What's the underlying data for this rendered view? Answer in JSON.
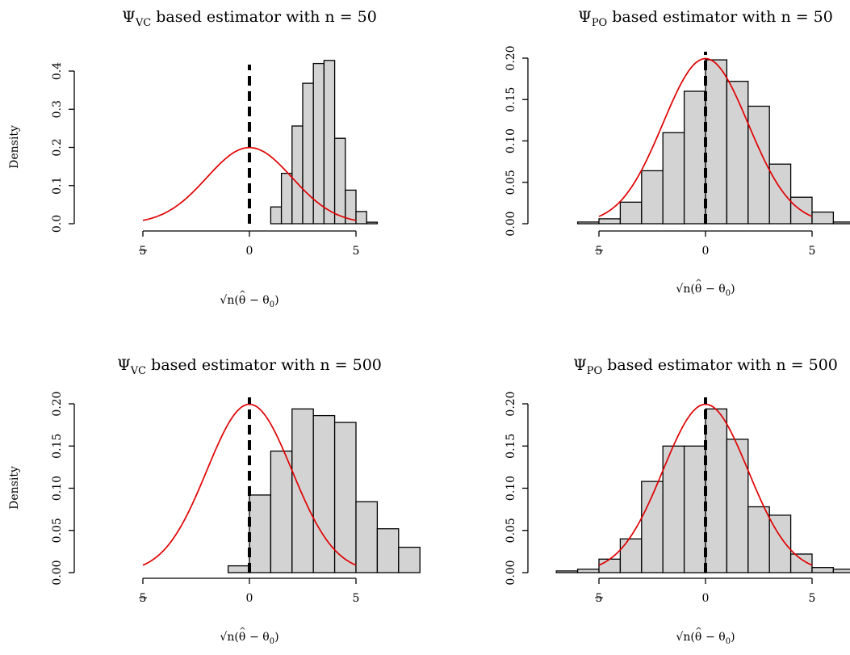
{
  "chart_data": [
    {
      "type": "bar",
      "panel": "top-left",
      "title": {
        "psi": "Ψ",
        "sub": "VC",
        "text": " based estimator with n = 50"
      },
      "ylabel": "Density",
      "xlabel": {
        "sqrt": "√",
        "n": "n",
        "open": "(",
        "theta": "θ",
        "hat": "^",
        "minus": " − θ",
        "sub": "0",
        "close": ")"
      },
      "xlim": [
        -5,
        5
      ],
      "ylim": [
        0,
        0.4
      ],
      "xticks": [
        -5,
        0,
        5
      ],
      "xtick_labels": [
        "5",
        "0",
        "5"
      ],
      "yticks": [
        0.0,
        0.1,
        0.2,
        0.3,
        0.4
      ],
      "ytick_labels": [
        "0.0",
        "0.1",
        "0.2",
        "0.3",
        "0.4"
      ],
      "bins": [
        {
          "x0": 0.5,
          "x1": 1.0,
          "density": 0.0
        },
        {
          "x0": 1.0,
          "x1": 1.5,
          "density": 0.044
        },
        {
          "x0": 1.5,
          "x1": 2.0,
          "density": 0.132
        },
        {
          "x0": 2.0,
          "x1": 2.5,
          "density": 0.256
        },
        {
          "x0": 2.5,
          "x1": 3.0,
          "density": 0.368
        },
        {
          "x0": 3.0,
          "x1": 3.5,
          "density": 0.42
        },
        {
          "x0": 3.5,
          "x1": 4.0,
          "density": 0.428
        },
        {
          "x0": 4.0,
          "x1": 4.5,
          "density": 0.224
        },
        {
          "x0": 4.5,
          "x1": 5.0,
          "density": 0.088
        },
        {
          "x0": 5.0,
          "x1": 5.5,
          "density": 0.032
        },
        {
          "x0": 5.5,
          "x1": 6.0,
          "density": 0.004
        }
      ],
      "curve": {
        "mean": 0,
        "sd": 2,
        "from": -5,
        "to": 5
      },
      "vline_x": 0,
      "colors": {
        "bar": "#d3d3d3",
        "curve": "#e00000",
        "vline": "#000000"
      }
    },
    {
      "type": "bar",
      "panel": "top-right",
      "title": {
        "psi": "Ψ",
        "sub": "PO",
        "text": " based estimator with n = 50"
      },
      "ylabel": "",
      "xlabel": {
        "sqrt": "√",
        "n": "n",
        "open": "(",
        "theta": "θ",
        "hat": "^",
        "minus": " − θ",
        "sub": "0",
        "close": ")"
      },
      "xlim": [
        -5,
        5
      ],
      "ylim": [
        0,
        0.2
      ],
      "xticks": [
        -5,
        0,
        5
      ],
      "xtick_labels": [
        "5",
        "0",
        "5"
      ],
      "yticks": [
        0.0,
        0.05,
        0.1,
        0.15,
        0.2
      ],
      "ytick_labels": [
        "0.00",
        "0.05",
        "0.10",
        "0.15",
        "0.20"
      ],
      "bins": [
        {
          "x0": -6.0,
          "x1": -5.0,
          "density": 0.002
        },
        {
          "x0": -5.0,
          "x1": -4.0,
          "density": 0.006
        },
        {
          "x0": -4.0,
          "x1": -3.0,
          "density": 0.026
        },
        {
          "x0": -3.0,
          "x1": -2.0,
          "density": 0.064
        },
        {
          "x0": -2.0,
          "x1": -1.0,
          "density": 0.11
        },
        {
          "x0": -1.0,
          "x1": 0.0,
          "density": 0.16
        },
        {
          "x0": 0.0,
          "x1": 1.0,
          "density": 0.198
        },
        {
          "x0": 1.0,
          "x1": 2.0,
          "density": 0.172
        },
        {
          "x0": 2.0,
          "x1": 3.0,
          "density": 0.142
        },
        {
          "x0": 3.0,
          "x1": 4.0,
          "density": 0.072
        },
        {
          "x0": 4.0,
          "x1": 5.0,
          "density": 0.032
        },
        {
          "x0": 5.0,
          "x1": 6.0,
          "density": 0.014
        },
        {
          "x0": 6.0,
          "x1": 7.0,
          "density": 0.002
        }
      ],
      "curve": {
        "mean": 0,
        "sd": 2,
        "from": -5,
        "to": 5
      },
      "vline_x": 0,
      "colors": {
        "bar": "#d3d3d3",
        "curve": "#e00000",
        "vline": "#000000"
      }
    },
    {
      "type": "bar",
      "panel": "bottom-left",
      "title": {
        "psi": "Ψ",
        "sub": "VC",
        "text": " based estimator with n = 500"
      },
      "ylabel": "Density",
      "xlabel": {
        "sqrt": "√",
        "n": "n",
        "open": "(",
        "theta": "θ",
        "hat": "^",
        "minus": " − θ",
        "sub": "0",
        "close": ")"
      },
      "xlim": [
        -5,
        5
      ],
      "ylim": [
        0,
        0.2
      ],
      "xticks": [
        -5,
        0,
        5
      ],
      "xtick_labels": [
        "5",
        "0",
        "5"
      ],
      "yticks": [
        0.0,
        0.05,
        0.1,
        0.15,
        0.2
      ],
      "ytick_labels": [
        "0.00",
        "0.05",
        "0.10",
        "0.15",
        "0.20"
      ],
      "bins": [
        {
          "x0": -1.0,
          "x1": 0.0,
          "density": 0.008
        },
        {
          "x0": 0.0,
          "x1": 1.0,
          "density": 0.092
        },
        {
          "x0": 1.0,
          "x1": 2.0,
          "density": 0.144
        },
        {
          "x0": 2.0,
          "x1": 3.0,
          "density": 0.194
        },
        {
          "x0": 3.0,
          "x1": 4.0,
          "density": 0.186
        },
        {
          "x0": 4.0,
          "x1": 5.0,
          "density": 0.178
        },
        {
          "x0": 5.0,
          "x1": 6.0,
          "density": 0.084
        },
        {
          "x0": 6.0,
          "x1": 7.0,
          "density": 0.052
        },
        {
          "x0": 7.0,
          "x1": 8.0,
          "density": 0.03
        }
      ],
      "curve": {
        "mean": 0,
        "sd": 2,
        "from": -5,
        "to": 5
      },
      "vline_x": 0,
      "colors": {
        "bar": "#d3d3d3",
        "curve": "#e00000",
        "vline": "#000000"
      }
    },
    {
      "type": "bar",
      "panel": "bottom-right",
      "title": {
        "psi": "Ψ",
        "sub": "PO",
        "text": " based estimator with n = 500"
      },
      "ylabel": "",
      "xlabel": {
        "sqrt": "√",
        "n": "n",
        "open": "(",
        "theta": "θ",
        "hat": "^",
        "minus": " − θ",
        "sub": "0",
        "close": ")"
      },
      "xlim": [
        -5,
        5
      ],
      "ylim": [
        0,
        0.2
      ],
      "xticks": [
        -5,
        0,
        5
      ],
      "xtick_labels": [
        "5",
        "0",
        "5"
      ],
      "yticks": [
        0.0,
        0.05,
        0.1,
        0.15,
        0.2
      ],
      "ytick_labels": [
        "0.00",
        "0.05",
        "0.10",
        "0.15",
        "0.20"
      ],
      "bins": [
        {
          "x0": -7.0,
          "x1": -6.0,
          "density": 0.002
        },
        {
          "x0": -6.0,
          "x1": -5.0,
          "density": 0.004
        },
        {
          "x0": -5.0,
          "x1": -4.0,
          "density": 0.016
        },
        {
          "x0": -4.0,
          "x1": -3.0,
          "density": 0.04
        },
        {
          "x0": -3.0,
          "x1": -2.0,
          "density": 0.108
        },
        {
          "x0": -2.0,
          "x1": -1.0,
          "density": 0.15
        },
        {
          "x0": -1.0,
          "x1": 0.0,
          "density": 0.15
        },
        {
          "x0": 0.0,
          "x1": 1.0,
          "density": 0.194
        },
        {
          "x0": 1.0,
          "x1": 2.0,
          "density": 0.158
        },
        {
          "x0": 2.0,
          "x1": 3.0,
          "density": 0.078
        },
        {
          "x0": 3.0,
          "x1": 4.0,
          "density": 0.068
        },
        {
          "x0": 4.0,
          "x1": 5.0,
          "density": 0.022
        },
        {
          "x0": 5.0,
          "x1": 6.0,
          "density": 0.006
        },
        {
          "x0": 6.0,
          "x1": 7.0,
          "density": 0.004
        }
      ],
      "curve": {
        "mean": 0,
        "sd": 2,
        "from": -5,
        "to": 5
      },
      "vline_x": 0,
      "colors": {
        "bar": "#d3d3d3",
        "curve": "#e00000",
        "vline": "#000000"
      }
    }
  ]
}
